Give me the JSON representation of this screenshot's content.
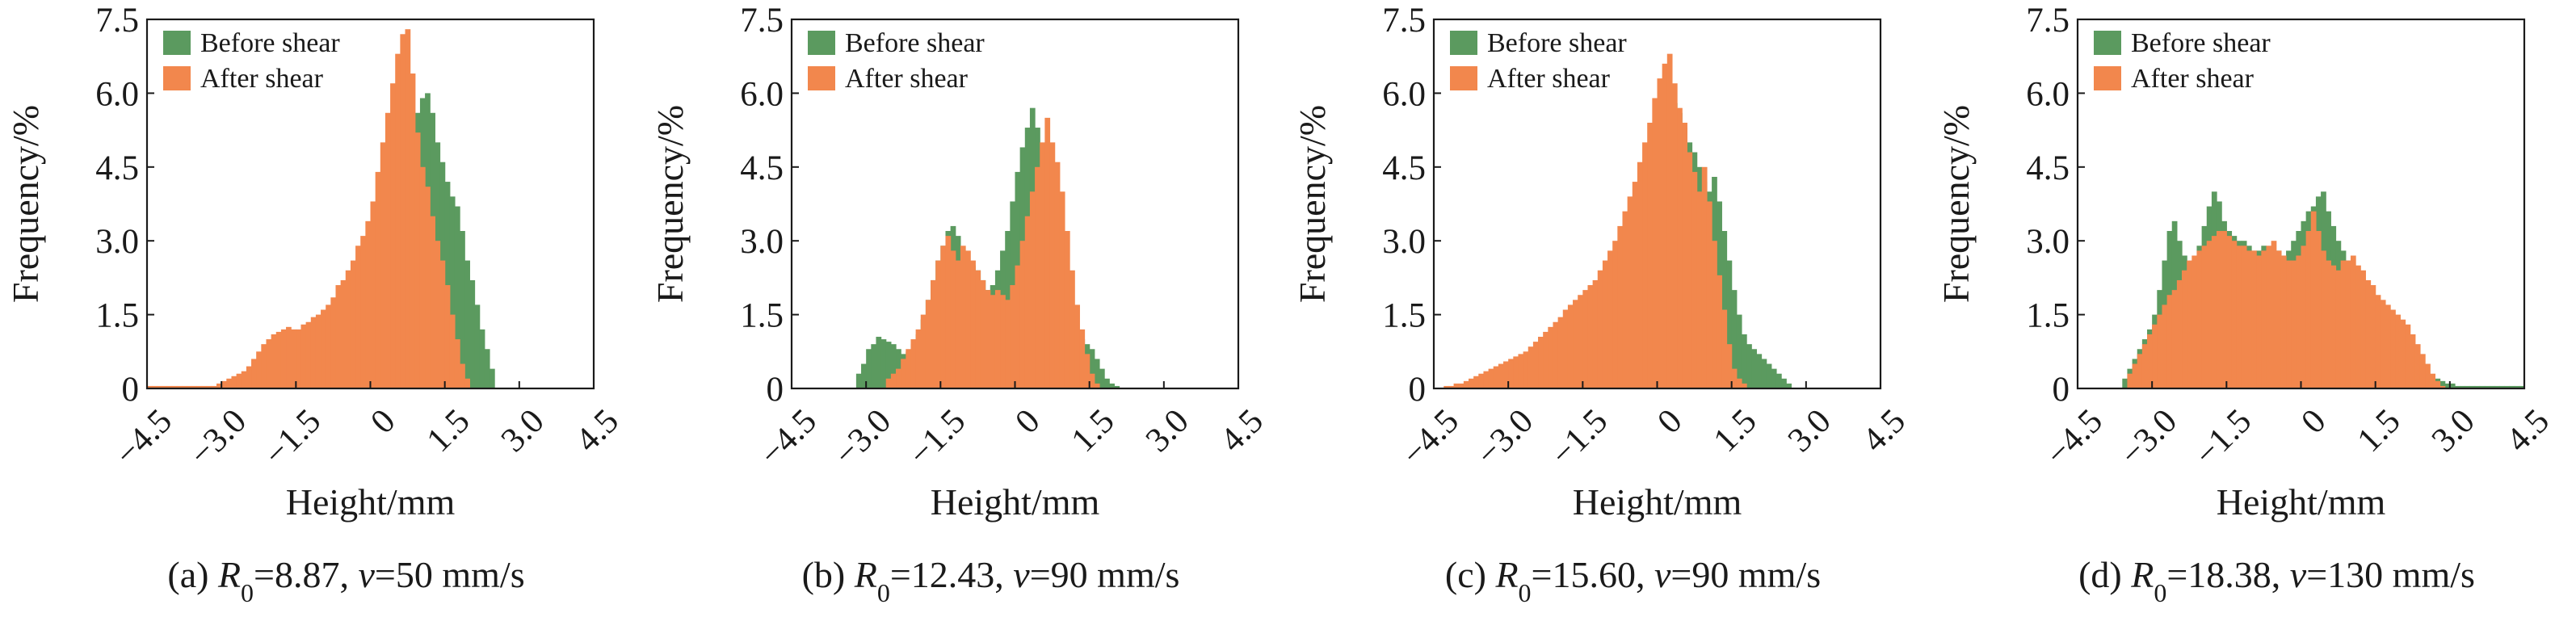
{
  "figure": {
    "background": "#ffffff"
  },
  "colors": {
    "before": "#5b9a5f",
    "after": "#f2874d",
    "axis": "#1a1a1a"
  },
  "chart_data": [
    {
      "type": "bar",
      "id": "a",
      "caption": {
        "prefix": "(a) ",
        "sym1": "R",
        "sub": "0",
        "mid": "=8.87, ",
        "sym2": "v",
        "suffix": "=50 mm/s"
      },
      "xlabel": "Height/mm",
      "ylabel": "Frequency/%",
      "xlim": [
        -4.5,
        4.5
      ],
      "ylim": [
        0,
        7.5
      ],
      "xticks": [
        -4.5,
        -3.0,
        -1.5,
        0,
        1.5,
        3.0,
        4.5
      ],
      "xtick_labels": [
        "−4.5",
        "−3.0",
        "−1.5",
        "0",
        "1.5",
        "3.0",
        "4.5"
      ],
      "yticks": [
        0,
        1.5,
        3.0,
        4.5,
        6.0,
        7.5
      ],
      "ytick_labels": [
        "0",
        "1.5",
        "3.0",
        "4.5",
        "6.0",
        "7.5"
      ],
      "legend_position": "top-left",
      "bin_width": 0.1,
      "series": [
        {
          "name": "Before shear",
          "color": "#5b9a5f",
          "x0": -2.8,
          "values": [
            0.05,
            0.1,
            0.15,
            0.2,
            0.3,
            0.35,
            0.45,
            0.55,
            0.7,
            0.8,
            0.9,
            1.0,
            1.05,
            1.1,
            1.15,
            1.2,
            1.2,
            1.25,
            1.3,
            1.35,
            1.4,
            1.5,
            1.6,
            1.7,
            1.9,
            2.0,
            2.2,
            2.4,
            2.6,
            2.9,
            3.2,
            3.5,
            3.9,
            4.4,
            4.8,
            5.2,
            5.4,
            5.6,
            5.9,
            6.0,
            5.6,
            5.0,
            4.6,
            4.2,
            3.9,
            3.7,
            3.2,
            2.6,
            2.2,
            1.7,
            1.2,
            0.8,
            0.4
          ]
        },
        {
          "name": "After shear",
          "color": "#f2874d",
          "x0": -4.5,
          "values": [
            0.05,
            0.05,
            0.05,
            0.05,
            0.05,
            0.05,
            0.05,
            0.05,
            0.05,
            0.05,
            0.05,
            0.05,
            0.05,
            0.05,
            0.1,
            0.15,
            0.2,
            0.25,
            0.3,
            0.35,
            0.45,
            0.6,
            0.75,
            0.9,
            1.0,
            1.1,
            1.15,
            1.2,
            1.25,
            1.2,
            1.2,
            1.3,
            1.35,
            1.45,
            1.5,
            1.6,
            1.7,
            1.85,
            2.1,
            2.2,
            2.4,
            2.6,
            2.9,
            3.1,
            3.4,
            3.8,
            4.4,
            5.0,
            5.6,
            6.2,
            6.8,
            7.2,
            7.3,
            6.4,
            5.2,
            4.5,
            4.1,
            3.5,
            3.0,
            2.6,
            2.1,
            1.5,
            1.0,
            0.5,
            0.2
          ]
        }
      ]
    },
    {
      "type": "bar",
      "id": "b",
      "caption": {
        "prefix": "(b) ",
        "sym1": "R",
        "sub": "0",
        "mid": "=12.43, ",
        "sym2": "v",
        "suffix": "=90 mm/s"
      },
      "xlabel": "Height/mm",
      "ylabel": "Frequency/%",
      "xlim": [
        -4.5,
        4.5
      ],
      "ylim": [
        0,
        7.5
      ],
      "xticks": [
        -4.5,
        -3.0,
        -1.5,
        0,
        1.5,
        3.0,
        4.5
      ],
      "xtick_labels": [
        "−4.5",
        "−3.0",
        "−1.5",
        "0",
        "1.5",
        "3.0",
        "4.5"
      ],
      "yticks": [
        0,
        1.5,
        3.0,
        4.5,
        6.0,
        7.5
      ],
      "ytick_labels": [
        "0",
        "1.5",
        "3.0",
        "4.5",
        "6.0",
        "7.5"
      ],
      "legend_position": "top-left",
      "bin_width": 0.1,
      "series": [
        {
          "name": "Before shear",
          "color": "#5b9a5f",
          "x0": -3.2,
          "values": [
            0.3,
            0.5,
            0.8,
            0.9,
            1.05,
            1.0,
            0.95,
            0.9,
            0.8,
            0.7,
            0.75,
            0.9,
            1.1,
            1.4,
            1.8,
            2.2,
            2.6,
            2.9,
            3.2,
            3.3,
            3.1,
            2.8,
            2.6,
            2.5,
            2.4,
            2.2,
            2.0,
            2.1,
            2.4,
            2.8,
            3.2,
            3.8,
            4.4,
            4.9,
            5.3,
            5.7,
            5.3,
            4.8,
            4.2,
            3.4,
            2.5,
            1.8,
            1.4,
            1.2,
            1.1,
            1.0,
            0.9,
            0.8,
            0.6,
            0.4,
            0.2,
            0.1,
            0.05
          ]
        },
        {
          "name": "After shear",
          "color": "#f2874d",
          "x0": -2.6,
          "values": [
            0.2,
            0.3,
            0.4,
            0.6,
            0.8,
            1.0,
            1.2,
            1.5,
            1.8,
            2.2,
            2.6,
            2.9,
            3.1,
            2.8,
            2.6,
            2.9,
            2.8,
            2.6,
            2.4,
            2.2,
            2.0,
            1.9,
            2.0,
            1.9,
            1.8,
            2.1,
            2.5,
            3.0,
            3.5,
            4.0,
            4.5,
            5.0,
            5.5,
            5.0,
            4.6,
            4.0,
            3.2,
            2.4,
            1.7,
            1.2,
            0.7,
            0.3,
            0.1
          ]
        }
      ]
    },
    {
      "type": "bar",
      "id": "c",
      "caption": {
        "prefix": "(c) ",
        "sym1": "R",
        "sub": "0",
        "mid": "=15.60, ",
        "sym2": "v",
        "suffix": "=90 mm/s"
      },
      "xlabel": "Height/mm",
      "ylabel": "Frequency/%",
      "xlim": [
        -4.5,
        4.5
      ],
      "ylim": [
        0,
        7.5
      ],
      "xticks": [
        -4.5,
        -3.0,
        -1.5,
        0,
        1.5,
        3.0,
        4.5
      ],
      "xtick_labels": [
        "−4.5",
        "−3.0",
        "−1.5",
        "0",
        "1.5",
        "3.0",
        "4.5"
      ],
      "yticks": [
        0,
        1.5,
        3.0,
        4.5,
        6.0,
        7.5
      ],
      "ytick_labels": [
        "0",
        "1.5",
        "3.0",
        "4.5",
        "6.0",
        "7.5"
      ],
      "legend_position": "top-left",
      "bin_width": 0.1,
      "series": [
        {
          "name": "Before shear",
          "color": "#5b9a5f",
          "x0": -3.2,
          "values": [
            0.1,
            0.2,
            0.3,
            0.4,
            0.5,
            0.6,
            0.7,
            0.8,
            0.9,
            1.0,
            1.1,
            1.2,
            1.3,
            1.4,
            1.5,
            1.6,
            1.7,
            1.8,
            1.9,
            2.0,
            2.2,
            2.4,
            2.6,
            2.8,
            3.0,
            3.3,
            3.6,
            3.9,
            4.2,
            4.5,
            4.8,
            5.1,
            5.4,
            5.7,
            5.9,
            5.8,
            5.6,
            5.3,
            5.0,
            4.8,
            4.5,
            4.2,
            4.0,
            4.3,
            3.8,
            3.2,
            2.6,
            2.0,
            1.5,
            1.1,
            0.9,
            0.8,
            0.7,
            0.6,
            0.5,
            0.4,
            0.3,
            0.2,
            0.1
          ]
        },
        {
          "name": "After shear",
          "color": "#f2874d",
          "x0": -4.3,
          "values": [
            0.05,
            0.05,
            0.1,
            0.1,
            0.15,
            0.2,
            0.25,
            0.3,
            0.35,
            0.4,
            0.45,
            0.5,
            0.55,
            0.6,
            0.65,
            0.7,
            0.75,
            0.85,
            0.95,
            1.05,
            1.15,
            1.25,
            1.35,
            1.45,
            1.6,
            1.7,
            1.8,
            1.9,
            2.0,
            2.1,
            2.2,
            2.4,
            2.6,
            2.8,
            3.0,
            3.3,
            3.6,
            3.9,
            4.2,
            4.6,
            5.0,
            5.4,
            5.9,
            6.3,
            6.6,
            6.8,
            6.2,
            5.7,
            5.4,
            4.8,
            4.4,
            4.0,
            4.5,
            3.8,
            3.0,
            2.3,
            1.6,
            0.9,
            0.4,
            0.2,
            0.1
          ]
        }
      ]
    },
    {
      "type": "bar",
      "id": "d",
      "caption": {
        "prefix": "(d) ",
        "sym1": "R",
        "sub": "0",
        "mid": "=18.38, ",
        "sym2": "v",
        "suffix": "=130 mm/s"
      },
      "xlabel": "Height/mm",
      "ylabel": "Frequency/%",
      "xlim": [
        -4.5,
        4.5
      ],
      "ylim": [
        0,
        7.5
      ],
      "xticks": [
        -4.5,
        -3.0,
        -1.5,
        0,
        1.5,
        3.0,
        4.5
      ],
      "xtick_labels": [
        "−4.5",
        "−3.0",
        "−1.5",
        "0",
        "1.5",
        "3.0",
        "4.5"
      ],
      "yticks": [
        0,
        1.5,
        3.0,
        4.5,
        6.0,
        7.5
      ],
      "ytick_labels": [
        "0",
        "1.5",
        "3.0",
        "4.5",
        "6.0",
        "7.5"
      ],
      "legend_position": "top-left",
      "bin_width": 0.1,
      "series": [
        {
          "name": "Before shear",
          "color": "#5b9a5f",
          "x0": -3.6,
          "values": [
            0.2,
            0.4,
            0.6,
            0.8,
            1.0,
            1.2,
            1.5,
            2.0,
            2.6,
            3.2,
            3.4,
            3.0,
            2.7,
            2.5,
            2.6,
            2.9,
            3.3,
            3.7,
            4.0,
            3.8,
            3.4,
            3.2,
            3.1,
            3.0,
            3.0,
            2.9,
            2.8,
            2.8,
            2.9,
            2.8,
            2.7,
            2.8,
            2.7,
            2.8,
            3.0,
            3.2,
            3.4,
            3.6,
            3.7,
            3.9,
            4.0,
            3.6,
            3.3,
            3.0,
            2.8,
            2.6,
            2.3,
            2.0,
            1.8,
            1.6,
            1.5,
            1.4,
            1.3,
            1.2,
            1.1,
            1.0,
            0.8,
            0.6,
            0.5,
            0.4,
            0.3,
            0.3,
            0.2,
            0.2,
            0.15,
            0.1,
            0.1,
            0.05,
            0.05,
            0.05,
            0.05,
            0.05,
            0.05,
            0.05,
            0.05,
            0.05,
            0.05,
            0.05,
            0.05,
            0.05,
            0.05
          ]
        },
        {
          "name": "After shear",
          "color": "#f2874d",
          "x0": -3.5,
          "values": [
            0.3,
            0.5,
            0.7,
            0.9,
            1.1,
            1.3,
            1.5,
            1.7,
            1.9,
            2.0,
            2.2,
            2.4,
            2.6,
            2.7,
            2.8,
            2.9,
            3.0,
            3.1,
            3.2,
            3.2,
            3.1,
            3.0,
            2.9,
            2.9,
            2.8,
            2.8,
            2.7,
            2.8,
            2.9,
            3.0,
            2.8,
            2.7,
            2.6,
            2.6,
            2.7,
            2.9,
            3.2,
            3.6,
            3.2,
            2.8,
            2.6,
            2.5,
            2.4,
            2.6,
            2.6,
            2.7,
            2.5,
            2.4,
            2.2,
            2.1,
            1.9,
            1.8,
            1.7,
            1.6,
            1.5,
            1.4,
            1.3,
            1.1,
            0.9,
            0.7,
            0.5,
            0.3,
            0.15,
            0.05
          ]
        }
      ]
    }
  ]
}
